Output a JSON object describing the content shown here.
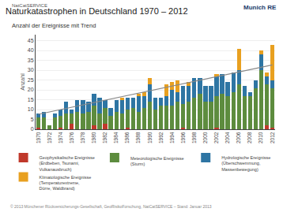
{
  "chart_data": {
    "type": "bar",
    "stacked": true,
    "title": "Naturkatastrophen in Deutschland 1970 – 2012",
    "subtitle": "Anzahl der Ereignisse mit Trend",
    "annotations": [
      "NatCatSERVICE",
      "Munich RE",
      "© 2013 Münchener Rückversicherungs-Gesellschaft, GeoRisikoForschung, NatCatSERVICE – Stand: Januar 2013"
    ],
    "ylabel": "Anzahl",
    "categories": [
      "1970",
      null,
      "1972",
      null,
      "1974",
      null,
      "1976",
      null,
      "1978",
      null,
      "1980",
      null,
      "1982",
      null,
      "1984",
      null,
      "1986",
      null,
      "1988",
      null,
      "1990",
      null,
      "1992",
      null,
      "1994",
      null,
      "1996",
      null,
      "1998",
      null,
      "2000",
      null,
      "2002",
      null,
      "2004",
      null,
      "2006",
      null,
      "2008",
      null,
      "2010",
      null,
      "2012"
    ],
    "series": [
      {
        "name": "Geophysikalische Ereignisse\n(Erdbeben, Tsunami,\nVulkanausbruch)",
        "color": "#c0392b",
        "values": [
          1,
          0,
          0,
          0,
          1,
          0,
          3,
          0,
          0,
          0,
          2,
          0,
          3,
          0,
          0,
          0,
          1,
          0,
          0,
          0,
          0,
          0,
          0,
          0,
          0,
          0,
          1,
          0,
          0,
          0,
          0,
          0,
          1,
          0,
          0,
          0,
          0,
          0,
          0,
          0,
          0,
          2,
          1
        ]
      },
      {
        "name": "Meteorologische Ereignisse\n(Sturm)",
        "color": "#5d8c3e",
        "values": [
          5,
          6,
          2,
          6,
          6,
          8,
          5,
          9,
          8,
          9,
          10,
          8,
          8,
          7,
          9,
          8,
          9,
          11,
          9,
          11,
          14,
          10,
          12,
          12,
          12,
          14,
          12,
          14,
          16,
          18,
          14,
          14,
          16,
          18,
          17,
          19,
          23,
          17,
          17,
          21,
          30,
          21,
          20
        ]
      },
      {
        "name": "Hydrologische Ereignisse\n(Überschwemmung,\nMassenbewegung)",
        "color": "#2e75a3",
        "values": [
          2,
          3,
          0,
          2,
          3,
          6,
          2,
          6,
          7,
          5,
          6,
          8,
          4,
          4,
          6,
          7,
          6,
          5,
          8,
          6,
          9,
          6,
          4,
          5,
          8,
          5,
          9,
          8,
          10,
          8,
          8,
          8,
          10,
          10,
          7,
          10,
          7,
          5,
          2,
          4,
          8,
          4,
          4
        ]
      },
      {
        "name": "Klimatologische Ereignisse\n(Temperaturextreme,\nDürre, Waldbrand)",
        "color": "#e8a020",
        "values": [
          0,
          0,
          0,
          0,
          0,
          0,
          0,
          0,
          0,
          0,
          0,
          0,
          0,
          0,
          0,
          1,
          0,
          0,
          1,
          2,
          3,
          0,
          0,
          6,
          4,
          6,
          0,
          2,
          0,
          0,
          0,
          0,
          1,
          0,
          0,
          0,
          11,
          0,
          0,
          0,
          2,
          2,
          18
        ]
      },
      {
        "type": "line",
        "color": "#888888",
        "values": [
          7.59,
          8.19,
          8.78,
          9.38,
          9.98,
          10.57,
          11.17,
          11.77,
          12.36,
          12.96,
          13.55,
          14.15,
          14.75,
          15.34,
          15.94,
          16.54,
          17.13,
          17.73,
          18.33,
          18.92,
          19.52,
          20.12,
          20.71,
          21.31,
          21.91,
          22.5,
          23.1,
          23.7,
          24.29,
          24.89,
          25.48,
          26.08,
          26.68,
          27.27,
          27.87,
          28.47,
          29.06,
          29.66,
          30.26,
          30.85,
          31.45,
          32.05,
          32.64
        ]
      }
    ],
    "ylim": [
      0,
      48
    ],
    "yticks": [
      0,
      5,
      10,
      15,
      20,
      25,
      30,
      35,
      40,
      45
    ],
    "grid": true,
    "legend": "bottom"
  }
}
